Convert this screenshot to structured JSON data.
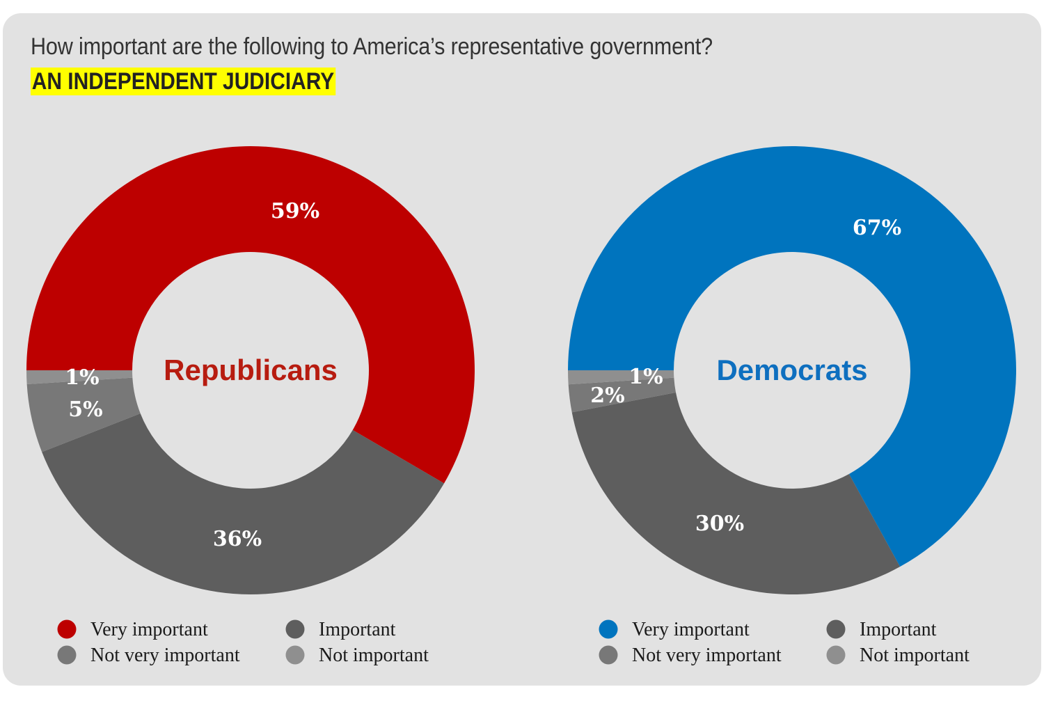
{
  "title": "How important are the following to America’s representative government?",
  "subtitle": "AN INDEPENDENT JUDICIARY",
  "colors": {
    "background": "#e2e2e2",
    "highlight": "#ffff00",
    "republican": "#bd0000",
    "republican_label": "#b71c10",
    "democrat": "#0074be",
    "democrat_label": "#0e6fbf",
    "important": "#5e5e5e",
    "not_very_important": "#787878",
    "not_important": "#8f8f8f"
  },
  "chart_data": [
    {
      "type": "pie",
      "title": "Republicans",
      "categories": [
        "Very important",
        "Important",
        "Not very important",
        "Not important"
      ],
      "values": [
        59,
        36,
        5,
        1
      ],
      "labels": [
        "59%",
        "36%",
        "5%",
        "1%"
      ],
      "colors": [
        "#bd0000",
        "#5e5e5e",
        "#787878",
        "#8f8f8f"
      ],
      "donut": true,
      "start": "9 o'clock, clockwise",
      "legend": [
        "Very important",
        "Important",
        "Not very important",
        "Not important"
      ],
      "legend_position": "bottom"
    },
    {
      "type": "pie",
      "title": "Democrats",
      "categories": [
        "Very important",
        "Important",
        "Not very important",
        "Not important"
      ],
      "values": [
        67,
        30,
        2,
        1
      ],
      "labels": [
        "67%",
        "30%",
        "2%",
        "1%"
      ],
      "colors": [
        "#0074be",
        "#5e5e5e",
        "#787878",
        "#8f8f8f"
      ],
      "donut": true,
      "start": "9 o'clock, clockwise",
      "legend": [
        "Very important",
        "Important",
        "Not very important",
        "Not important"
      ],
      "legend_position": "bottom"
    }
  ]
}
